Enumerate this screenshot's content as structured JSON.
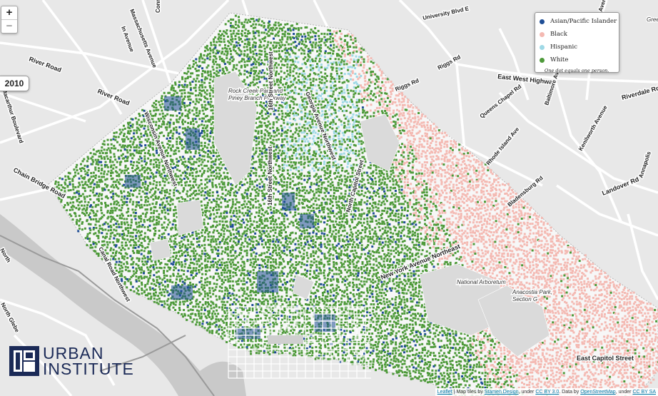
{
  "map": {
    "zoom_in_label": "+",
    "zoom_out_label": "−",
    "year": "2010",
    "legend": {
      "items": [
        {
          "label": "Asian/Pacific Islander",
          "color": "#1f4e96"
        },
        {
          "label": "Black",
          "color": "#f4b9b2"
        },
        {
          "label": "Hispanic",
          "color": "#9fd9e6"
        },
        {
          "label": "White",
          "color": "#4e9a3a"
        }
      ],
      "note": "One dot equals one person."
    },
    "colors": {
      "base": "#e8e8e8",
      "water": "#c9c9c9",
      "road": "#ffffff",
      "highway": "#9a9a9a",
      "park": "#dadada"
    },
    "road_labels": [
      "Massachusetts Avenue",
      "Macarthur Boulevard",
      "River Road",
      "River Road",
      "Connecticut Avenue",
      "Wisconsin Avenue Northwest",
      "Canal Road Northwest",
      "Chain Bridge Road",
      "North Glebe",
      "North",
      "Rock Creek Park and Piney Branch Parkway",
      "16th Street Northwest",
      "Georgia Avenue Northwest",
      "16th Street Northwest",
      "North Capitol Street",
      "New York Avenue Northeast",
      "Rhode Island Ave",
      "Bladensburg Rd",
      "Queens Chapel Rd",
      "Riggs Rd",
      "Riggs Rd",
      "University Blvd E",
      "East West Highway",
      "Baltimore Avenue",
      "Kenilworth Avenue",
      "Kenilworth Avenue",
      "Riverdale Rd",
      "Landover Rd",
      "Annapolis",
      "East Capitol Street",
      "National Arboretum",
      "Anacostia Park, Section G",
      "Greenbelt",
      "In Avenue"
    ],
    "logo": {
      "line1": "URBAN",
      "line2": "INSTITUTE"
    },
    "attribution": {
      "leaflet": "Leaflet",
      "text1": " | Map tiles by ",
      "stamen": "Stamen Design",
      "text2": ", under ",
      "ccby": "CC BY 3.0",
      "text3": ". Data by ",
      "osm": "OpenStreetMap",
      "text4": ", under ",
      "ccbysa": "CC BY SA"
    }
  }
}
